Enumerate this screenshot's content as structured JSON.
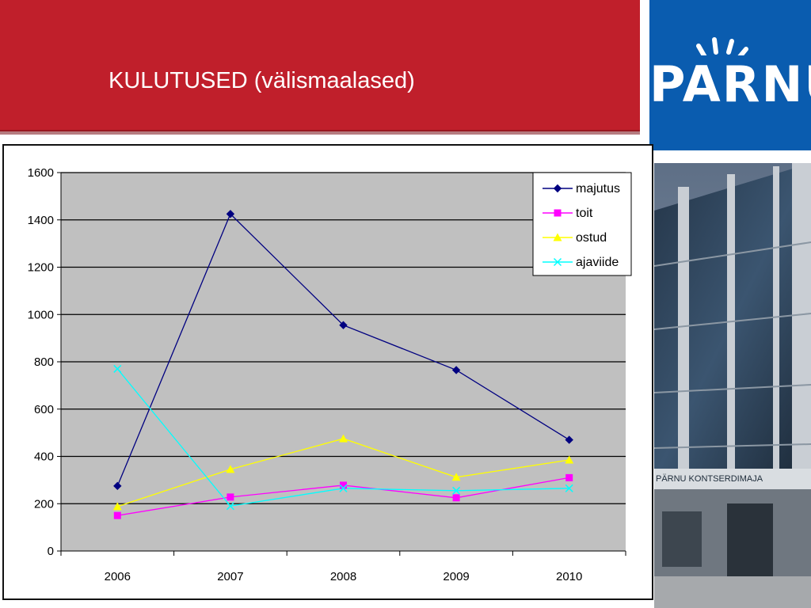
{
  "slide": {
    "title": "KULUTUSED (välismaalased)",
    "logo_text": "PARNU",
    "building_sign": "PÄRNU KONTSERDIMAJA",
    "colors": {
      "header_red": "#c01f2b",
      "logo_blue": "#0a5caf",
      "plot_gray": "#c0c0c0"
    }
  },
  "chart_data": {
    "type": "line",
    "title": "",
    "xlabel": "",
    "ylabel": "",
    "categories": [
      "2006",
      "2007",
      "2008",
      "2009",
      "2010"
    ],
    "ylim": [
      0,
      1600
    ],
    "yticks": [
      0,
      200,
      400,
      600,
      800,
      1000,
      1200,
      1400,
      1600
    ],
    "grid": true,
    "legend_position": "top-right",
    "series": [
      {
        "name": "majutus",
        "color": "#000080",
        "marker": "diamond",
        "values": [
          275,
          1425,
          955,
          765,
          470
        ]
      },
      {
        "name": "toit",
        "color": "#ff00ff",
        "marker": "square",
        "values": [
          150,
          228,
          278,
          225,
          310
        ]
      },
      {
        "name": "ostud",
        "color": "#ffff00",
        "marker": "triangle",
        "values": [
          188,
          345,
          475,
          312,
          385
        ]
      },
      {
        "name": "ajaviide",
        "color": "#00ffff",
        "marker": "x",
        "values": [
          770,
          190,
          265,
          255,
          265
        ]
      }
    ]
  }
}
